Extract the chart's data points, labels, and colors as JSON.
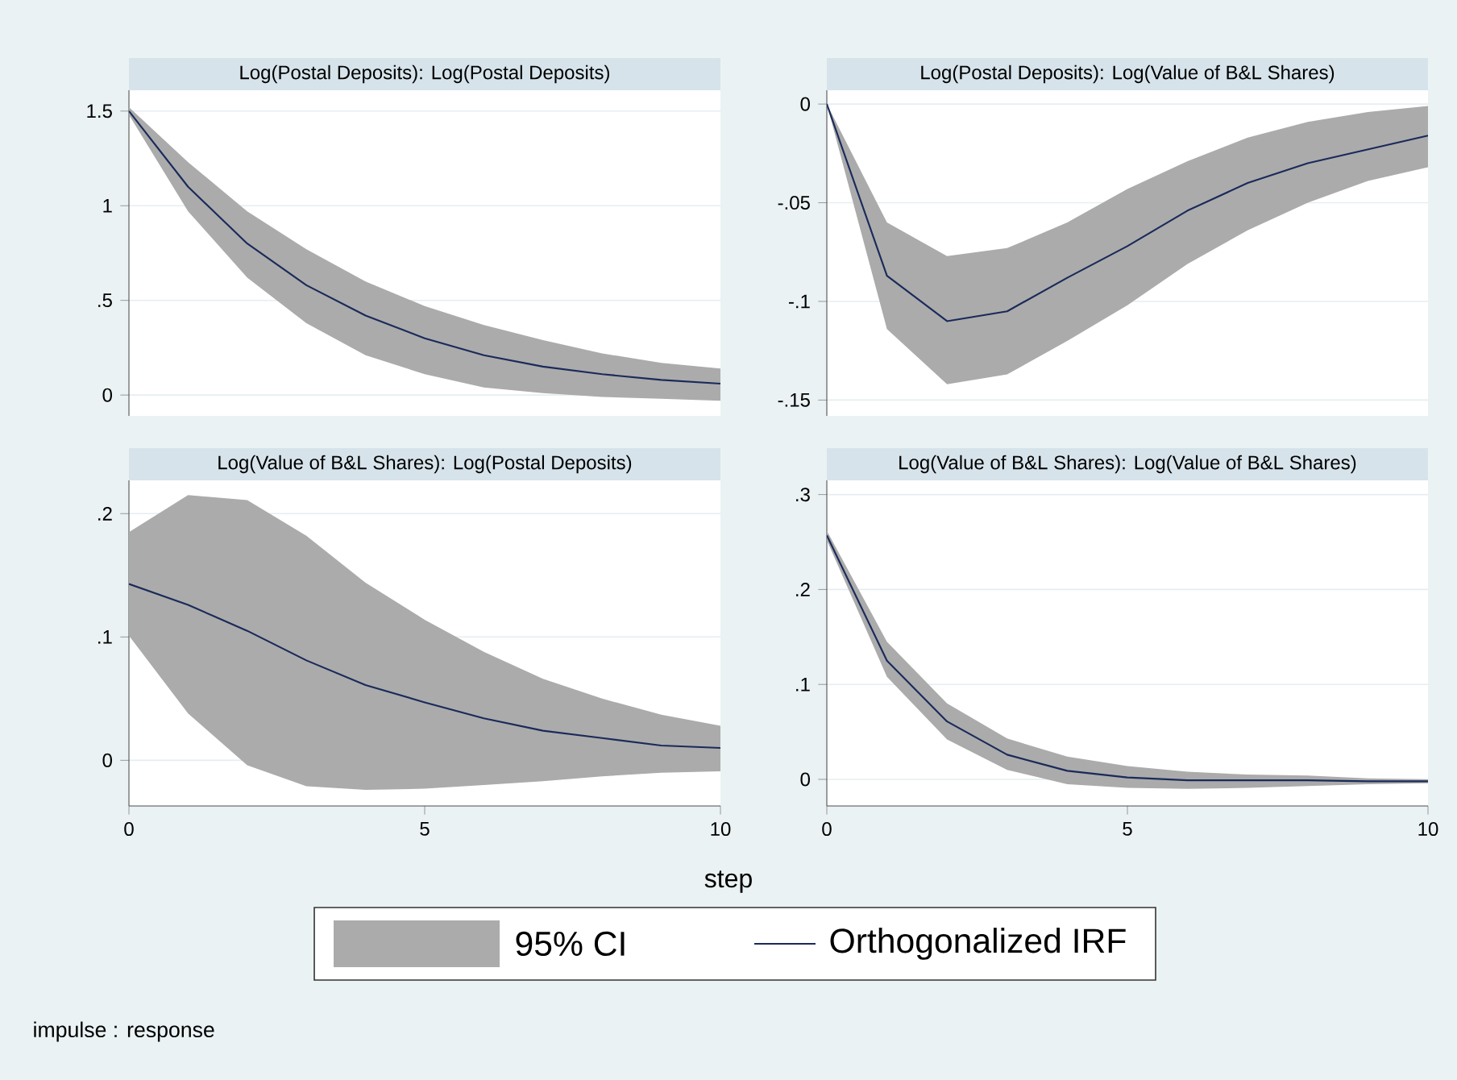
{
  "chart_data": [
    {
      "type": "line",
      "title": "Log(Postal Deposits): Log(Postal Deposits)",
      "x": [
        0,
        1,
        2,
        3,
        4,
        5,
        6,
        7,
        8,
        9,
        10
      ],
      "xlim": [
        0,
        10
      ],
      "ylim": [
        -0.11,
        1.61
      ],
      "yticks": [
        0,
        {
          "value": 0.5,
          "label": ".5"
        },
        1,
        1.5
      ],
      "grid": "y",
      "tick_labels": "y",
      "series": [
        {
          "color": "#1a2a5a",
          "values": [
            1.5,
            1.1,
            0.8,
            0.58,
            0.42,
            0.3,
            0.21,
            0.15,
            0.11,
            0.08,
            0.06
          ],
          "lower": [
            1.48,
            0.97,
            0.62,
            0.38,
            0.21,
            0.11,
            0.04,
            0.01,
            -0.01,
            -0.02,
            -0.03
          ],
          "upper": [
            1.52,
            1.23,
            0.97,
            0.77,
            0.6,
            0.47,
            0.37,
            0.29,
            0.22,
            0.17,
            0.14
          ]
        }
      ]
    },
    {
      "type": "line",
      "title": "Log(Postal Deposits): Log(Value of B&L Shares)",
      "x": [
        0,
        1,
        2,
        3,
        4,
        5,
        6,
        7,
        8,
        9,
        10
      ],
      "xlim": [
        0,
        10
      ],
      "ylim": [
        -0.158,
        0.007
      ],
      "yticks": [
        {
          "value": -0.15,
          "label": "-.15"
        },
        {
          "value": -0.1,
          "label": "-.1"
        },
        {
          "value": -0.05,
          "label": "-.05"
        },
        0
      ],
      "grid": "y",
      "tick_labels": "y",
      "series": [
        {
          "color": "#1a2a5a",
          "values": [
            0,
            -0.087,
            -0.11,
            -0.105,
            -0.088,
            -0.072,
            -0.054,
            -0.04,
            -0.03,
            -0.023,
            -0.016
          ],
          "lower": [
            0,
            -0.114,
            -0.142,
            -0.137,
            -0.12,
            -0.102,
            -0.081,
            -0.064,
            -0.05,
            -0.039,
            -0.032
          ],
          "upper": [
            0,
            -0.06,
            -0.077,
            -0.073,
            -0.06,
            -0.043,
            -0.029,
            -0.017,
            -0.009,
            -0.004,
            -0.001
          ]
        }
      ]
    },
    {
      "type": "line",
      "title": "Log(Value of B&L Shares): Log(Postal Deposits)",
      "x": [
        0,
        1,
        2,
        3,
        4,
        5,
        6,
        7,
        8,
        9,
        10
      ],
      "xlim": [
        0,
        10
      ],
      "xticks": [
        0,
        5,
        10
      ],
      "ylim": [
        -0.037,
        0.227
      ],
      "yticks": [
        0,
        {
          "value": 0.1,
          "label": ".1"
        },
        {
          "value": 0.2,
          "label": ".2"
        }
      ],
      "grid": "y",
      "series": [
        {
          "color": "#1a2a5a",
          "values": [
            0.143,
            0.126,
            0.105,
            0.081,
            0.061,
            0.047,
            0.034,
            0.024,
            0.018,
            0.012,
            0.01
          ],
          "lower": [
            0.101,
            0.038,
            -0.004,
            -0.021,
            -0.024,
            -0.023,
            -0.02,
            -0.017,
            -0.013,
            -0.01,
            -0.009
          ],
          "upper": [
            0.185,
            0.215,
            0.211,
            0.182,
            0.144,
            0.114,
            0.088,
            0.066,
            0.05,
            0.037,
            0.028
          ]
        }
      ]
    },
    {
      "type": "line",
      "title": "Log(Value of B&L Shares): Log(Value of B&L Shares)",
      "x": [
        0,
        1,
        2,
        3,
        4,
        5,
        6,
        7,
        8,
        9,
        10
      ],
      "xlim": [
        0,
        10
      ],
      "xticks": [
        0,
        5,
        10
      ],
      "ylim": [
        -0.028,
        0.315
      ],
      "yticks": [
        0,
        {
          "value": 0.1,
          "label": ".1"
        },
        {
          "value": 0.2,
          "label": ".2"
        },
        {
          "value": 0.3,
          "label": ".3"
        }
      ],
      "grid": "y",
      "xlabel": "step",
      "legend": "bottom",
      "annotations": [
        "95% CI",
        "impulse : response"
      ],
      "series": [
        {
          "name": "Orthogonalized IRF",
          "color": "#1a2a5a",
          "values": [
            0.257,
            0.125,
            0.061,
            0.026,
            0.009,
            0.002,
            -0.001,
            -0.001,
            -0.001,
            -0.002,
            -0.002
          ],
          "lower": [
            0.252,
            0.108,
            0.042,
            0.01,
            -0.005,
            -0.009,
            -0.01,
            -0.009,
            -0.007,
            -0.005,
            -0.004
          ],
          "upper": [
            0.262,
            0.145,
            0.08,
            0.043,
            0.024,
            0.014,
            0.008,
            0.005,
            0.004,
            0.001,
            0.0
          ]
        }
      ]
    }
  ]
}
